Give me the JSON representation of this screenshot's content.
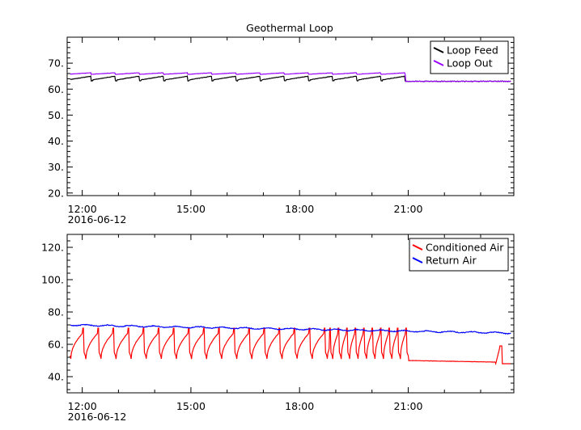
{
  "chart_data": [
    {
      "type": "line",
      "title": "Geothermal Loop",
      "xlabel": "",
      "ylabel": "",
      "x_range": [
        "2016-06-12 11:35",
        "2016-06-12 23:55"
      ],
      "ylim": [
        19,
        80
      ],
      "y_ticks": [
        20,
        30,
        40,
        50,
        60,
        70
      ],
      "y_tick_labels": [
        "20.",
        "30.",
        "40.",
        "50.",
        "60.",
        "70."
      ],
      "x_ticks": [
        "2016-06-12 12:00",
        "2016-06-12 15:00",
        "2016-06-12 18:00",
        "2016-06-12 21:00"
      ],
      "x_tick_labels": [
        "12:00",
        "15:00",
        "18:00",
        "21:00"
      ],
      "date_label": "2016-06-12",
      "legend_position": "top-right",
      "grid": false,
      "series": [
        {
          "name": "Loop Feed",
          "color": "#000000",
          "pattern": "feed",
          "base": 64,
          "amp": 1.5,
          "tail": 63
        },
        {
          "name": "Loop Out",
          "color": "#9900ff",
          "pattern": "out",
          "base": 66,
          "amp": 0.6,
          "tail": 63
        }
      ]
    },
    {
      "type": "line",
      "title": "",
      "xlabel": "",
      "ylabel": "",
      "x_range": [
        "2016-06-12 11:35",
        "2016-06-12 23:55"
      ],
      "ylim": [
        30,
        128
      ],
      "y_ticks": [
        40,
        60,
        80,
        100,
        120
      ],
      "y_tick_labels": [
        "40.",
        "60.",
        "80.",
        "100.",
        "120."
      ],
      "x_ticks": [
        "2016-06-12 12:00",
        "2016-06-12 15:00",
        "2016-06-12 18:00",
        "2016-06-12 21:00"
      ],
      "x_tick_labels": [
        "12:00",
        "15:00",
        "18:00",
        "21:00"
      ],
      "date_label": "2016-06-12",
      "legend_position": "top-right",
      "grid": false,
      "series": [
        {
          "name": "Conditioned Air",
          "color": "#ff0000",
          "pattern": "cond",
          "high": 71,
          "low": 51,
          "tail": 48
        },
        {
          "name": "Return Air",
          "color": "#0000ff",
          "pattern": "ret",
          "start": 72,
          "end": 67
        }
      ]
    }
  ]
}
